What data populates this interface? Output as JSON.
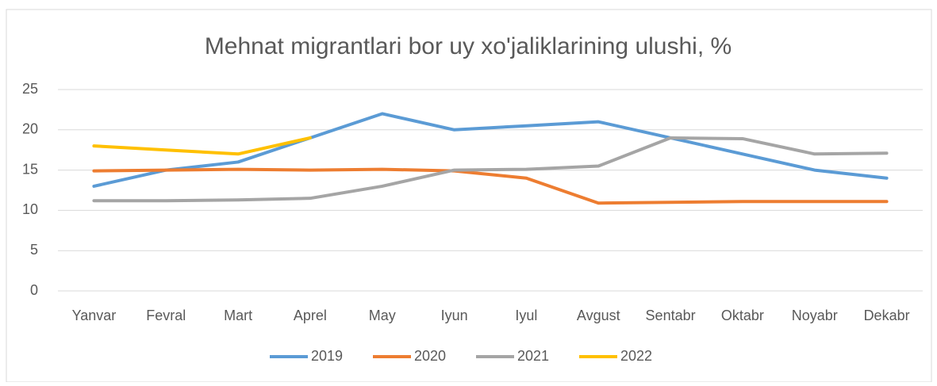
{
  "chart_data": {
    "type": "line",
    "title": "Mehnat migrantlari bor uy xo'jaliklarining ulushi, %",
    "categories": [
      "Yanvar",
      "Fevral",
      "Mart",
      "Aprel",
      "May",
      "Iyun",
      "Iyul",
      "Avgust",
      "Sentabr",
      "Oktabr",
      "Noyabr",
      "Dekabr"
    ],
    "series": [
      {
        "name": "2019",
        "color": "#5b9bd5",
        "values": [
          13,
          15,
          16,
          19,
          22,
          20,
          20.5,
          21,
          19,
          17,
          15,
          14
        ]
      },
      {
        "name": "2020",
        "color": "#ed7d31",
        "values": [
          14.9,
          15,
          15.1,
          15,
          15.1,
          14.9,
          14,
          10.9,
          11,
          11.1,
          11.1,
          11.1
        ]
      },
      {
        "name": "2021",
        "color": "#a5a5a5",
        "values": [
          11.2,
          11.2,
          11.3,
          11.5,
          13,
          15,
          15.1,
          15.5,
          19,
          18.9,
          17,
          17.1
        ]
      },
      {
        "name": "2022",
        "color": "#ffc000",
        "values": [
          18,
          17.5,
          17,
          19,
          null,
          null,
          null,
          null,
          null,
          null,
          null,
          null
        ]
      }
    ],
    "ylim": [
      0,
      25
    ],
    "yticks": [
      0,
      5,
      10,
      15,
      20,
      25
    ],
    "grid": true,
    "legend": "bottom"
  }
}
